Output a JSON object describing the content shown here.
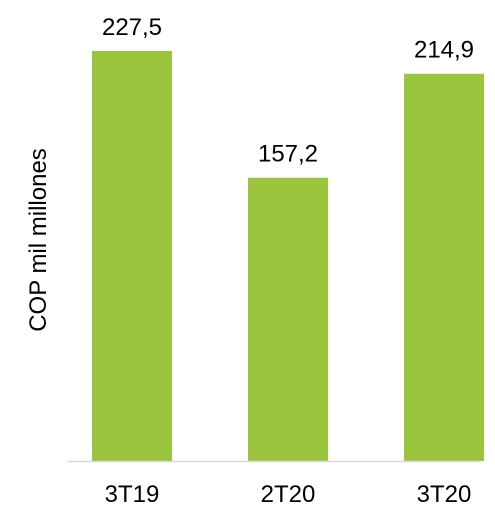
{
  "chart_data": {
    "type": "bar",
    "categories": [
      "3T19",
      "2T20",
      "3T20"
    ],
    "values": [
      227.5,
      157.2,
      214.9
    ],
    "value_labels": [
      "227,5",
      "157,2",
      "214,9"
    ],
    "ylabel": "COP mil millones",
    "xlabel": "",
    "title": "",
    "ylim": [
      0,
      250
    ],
    "grid": false,
    "legend": "none",
    "bar_color": "#9BC53D",
    "axis_color": "#D9D9D9"
  }
}
